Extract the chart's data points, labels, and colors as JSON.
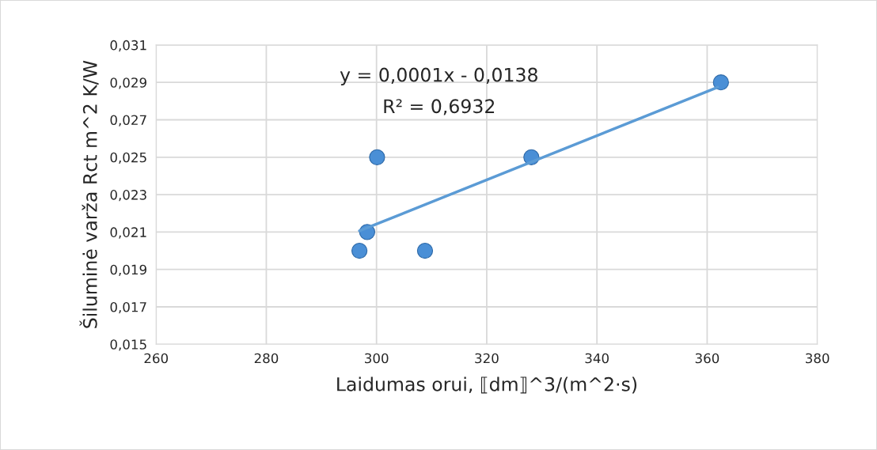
{
  "chart_data": {
    "type": "scatter",
    "xlabel": "Laidumas orui, ⟦dm⟧^3/(m^2·s)",
    "ylabel": "Šiluminė varža Rct m^2 K/W",
    "series": [
      {
        "color": "#4a8fd6",
        "marker": "circle",
        "x": [
          296.9,
          298.3,
          300.1,
          308.8,
          328.1,
          362.5
        ],
        "values": [
          0.02,
          0.021,
          0.025,
          0.02,
          0.025,
          0.029
        ]
      },
      {
        "type": "line",
        "color": "#5b9bd5",
        "marker": "none",
        "line_style": "solid",
        "x": [
          296.9,
          361.9
        ],
        "values": [
          0.02106,
          0.02874
        ]
      }
    ],
    "annotations": [
      "y = 0,0001x - 0,0138",
      "R² = 0,6932"
    ],
    "xlim": [
      260,
      380
    ],
    "xticks": [
      260,
      280,
      300,
      320,
      340,
      360,
      380
    ],
    "ylim": [
      0.015,
      0.031
    ],
    "yticks": [
      {
        "value": 0.015,
        "label": "0,015"
      },
      {
        "value": 0.017,
        "label": "0,017"
      },
      {
        "value": 0.019,
        "label": "0,019"
      },
      {
        "value": 0.021,
        "label": "0,021"
      },
      {
        "value": 0.023,
        "label": "0,023"
      },
      {
        "value": 0.025,
        "label": "0,025"
      },
      {
        "value": 0.027,
        "label": "0,027"
      },
      {
        "value": 0.029,
        "label": "0,029"
      },
      {
        "value": 0.031,
        "label": "0,031"
      }
    ],
    "grid": true
  }
}
